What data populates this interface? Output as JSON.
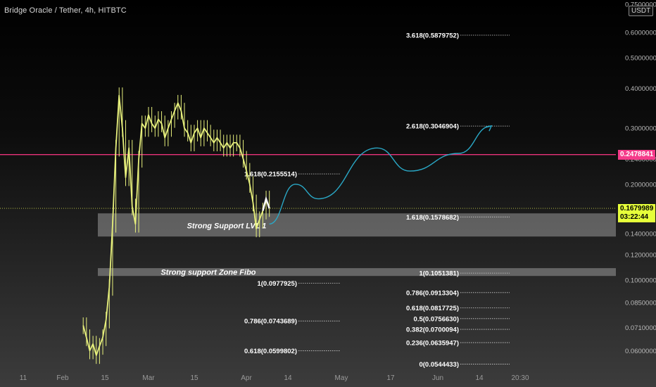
{
  "header": {
    "symbol_title": "Bridge Oracle / Tether, 4h, HITBTC",
    "currency": "USDT"
  },
  "price_tags": {
    "resistance": "0.2478841",
    "current_price": "0.1679989",
    "countdown": "03:22:44"
  },
  "colors": {
    "candles": "#e7f07c",
    "resistance_line": "#e8327a",
    "projection_arrow": "#2aa8c6",
    "zone_fill": "#bdbdbd",
    "current_price_line": "#c8d24a"
  },
  "chart_data": {
    "type": "line",
    "series": [
      {
        "values": [
          [
            "2021-02-09",
            0.072
          ],
          [
            "2021-02-10",
            0.066
          ],
          [
            "2021-02-11",
            0.06
          ],
          [
            "2021-02-12",
            0.063
          ],
          [
            "2021-02-13",
            0.058
          ],
          [
            "2021-02-14",
            0.062
          ],
          [
            "2021-02-15",
            0.066
          ],
          [
            "2021-02-16",
            0.075
          ],
          [
            "2021-02-17",
            0.095
          ],
          [
            "2021-02-18",
            0.15
          ],
          [
            "2021-02-19",
            0.26
          ],
          [
            "2021-02-20",
            0.38
          ],
          [
            "2021-02-21",
            0.3
          ],
          [
            "2021-02-22",
            0.21
          ],
          [
            "2021-02-23",
            0.26
          ],
          [
            "2021-02-24",
            0.17
          ],
          [
            "2021-02-25",
            0.15
          ],
          [
            "2021-02-26",
            0.24
          ],
          [
            "2021-02-27",
            0.31
          ],
          [
            "2021-02-28",
            0.3
          ],
          [
            "2021-03-01",
            0.33
          ],
          [
            "2021-03-02",
            0.31
          ],
          [
            "2021-03-03",
            0.3
          ],
          [
            "2021-03-04",
            0.32
          ],
          [
            "2021-03-05",
            0.31
          ],
          [
            "2021-03-06",
            0.28
          ],
          [
            "2021-03-07",
            0.3
          ],
          [
            "2021-03-08",
            0.32
          ],
          [
            "2021-03-09",
            0.34
          ],
          [
            "2021-03-10",
            0.36
          ],
          [
            "2021-03-11",
            0.34
          ],
          [
            "2021-03-12",
            0.3
          ],
          [
            "2021-03-13",
            0.29
          ],
          [
            "2021-03-14",
            0.27
          ],
          [
            "2021-03-15",
            0.29
          ],
          [
            "2021-03-16",
            0.3
          ],
          [
            "2021-03-17",
            0.28
          ],
          [
            "2021-03-18",
            0.3
          ],
          [
            "2021-03-19",
            0.29
          ],
          [
            "2021-03-20",
            0.28
          ],
          [
            "2021-03-21",
            0.27
          ],
          [
            "2021-03-22",
            0.28
          ],
          [
            "2021-03-23",
            0.27
          ],
          [
            "2021-03-24",
            0.26
          ],
          [
            "2021-03-25",
            0.27
          ],
          [
            "2021-03-26",
            0.26
          ],
          [
            "2021-03-27",
            0.27
          ],
          [
            "2021-03-28",
            0.27
          ],
          [
            "2021-03-29",
            0.26
          ],
          [
            "2021-03-30",
            0.24
          ],
          [
            "2021-03-31",
            0.22
          ],
          [
            "2021-04-01",
            0.2
          ],
          [
            "2021-04-02",
            0.175
          ],
          [
            "2021-04-03",
            0.145
          ],
          [
            "2021-04-04",
            0.155
          ],
          [
            "2021-04-05",
            0.165
          ],
          [
            "2021-04-06",
            0.18
          ],
          [
            "2021-04-07",
            0.168
          ]
        ]
      },
      {
        "values": [
          [
            "2021-04-07",
            0.15
          ],
          [
            "2021-04-15",
            0.2
          ],
          [
            "2021-04-22",
            0.18
          ],
          [
            "2021-05-10",
            0.26
          ],
          [
            "2021-05-20",
            0.22
          ],
          [
            "2021-06-04",
            0.25
          ],
          [
            "2021-06-14",
            0.305
          ]
        ]
      }
    ],
    "y_ticks": [
      "0.7500000",
      "0.6000000",
      "0.5000000",
      "0.4000000",
      "0.3000000",
      "0.2400000",
      "0.2000000",
      "0.1400000",
      "0.1200000",
      "0.1000000",
      "0.0850000",
      "0.0710000",
      "0.0600000"
    ],
    "x_ticks": [
      "11",
      "Feb",
      "15",
      "Mar",
      "15",
      "Apr",
      "14",
      "May",
      "17",
      "Jun",
      "14",
      "20:30"
    ],
    "zones": [
      {
        "label": "Strong Support LVL 1",
        "from": 0.137,
        "to": 0.162
      },
      {
        "label": "Strong support Zone Fibo",
        "from": 0.103,
        "to": 0.109
      }
    ],
    "fib_levels": [
      {
        "label": "3.618(0.5879752)",
        "value": 0.5879752
      },
      {
        "label": "2.618(0.3046904)",
        "value": 0.3046904
      },
      {
        "label": "1.618(0.2155514)",
        "value": 0.2155514
      },
      {
        "label": "1.618(0.1578682)",
        "value": 0.1578682
      },
      {
        "label": "1(0.1051381)",
        "value": 0.1051381
      },
      {
        "label": "1(0.0977925)",
        "value": 0.0977925
      },
      {
        "label": "0.786(0.0913304)",
        "value": 0.0913304
      },
      {
        "label": "0.618(0.0817725)",
        "value": 0.0817725
      },
      {
        "label": "0.5(0.0756630)",
        "value": 0.075663
      },
      {
        "label": "0.786(0.0743689)",
        "value": 0.0743689
      },
      {
        "label": "0.382(0.0700094)",
        "value": 0.0700094
      },
      {
        "label": "0.236(0.0635947)",
        "value": 0.0635947
      },
      {
        "label": "0.618(0.0599802)",
        "value": 0.0599802
      },
      {
        "label": "0(0.0544433)",
        "value": 0.0544433
      }
    ],
    "horizontal_lines": [
      {
        "name": "resistance",
        "value": 0.2478841
      },
      {
        "name": "current-price",
        "value": 0.1679989
      }
    ],
    "scale": "log"
  }
}
